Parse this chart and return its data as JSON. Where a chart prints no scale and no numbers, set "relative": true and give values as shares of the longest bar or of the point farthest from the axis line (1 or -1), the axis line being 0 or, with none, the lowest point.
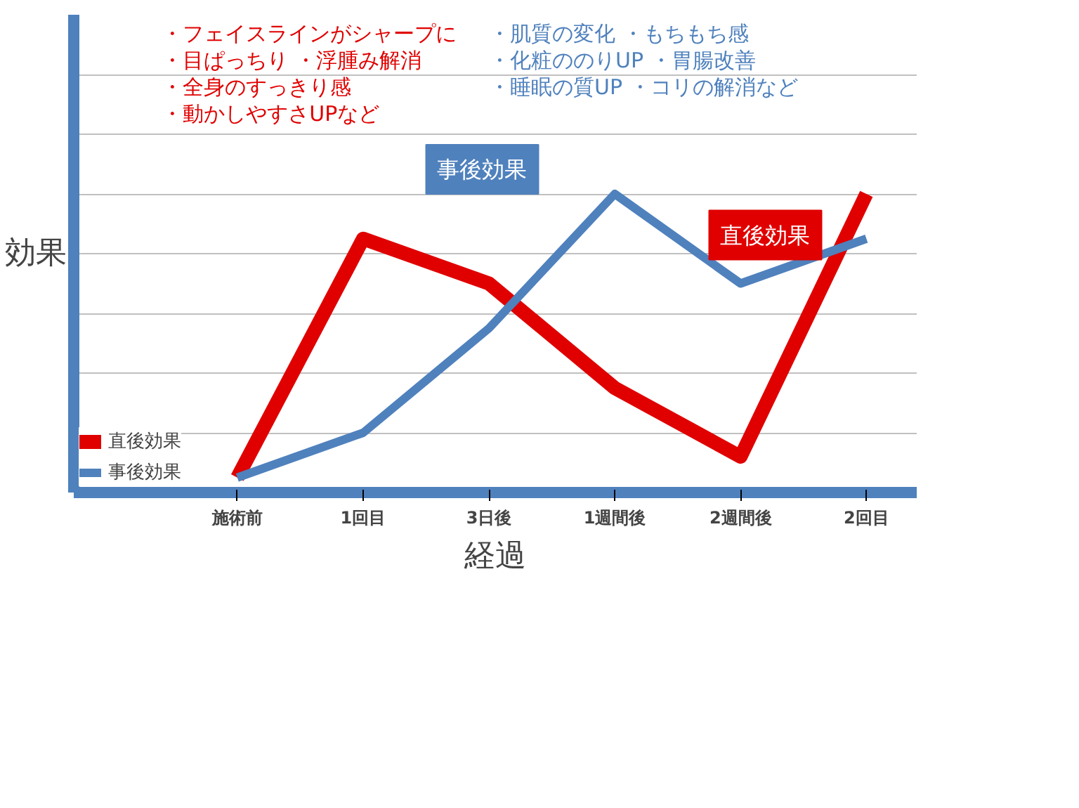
{
  "chart_data": {
    "type": "line",
    "relative": true,
    "xlabel": "経過",
    "ylabel": "効果",
    "categories": [
      "施術前",
      "1回目",
      "3日後",
      "1週間後",
      "2週間後",
      "2回目"
    ],
    "series": [
      {
        "name": "直後効果",
        "color": "#e00000",
        "values": [
          0.05,
          0.85,
          0.7,
          0.35,
          0.12,
          1.0
        ]
      },
      {
        "name": "事後効果",
        "color": "#4f81bd",
        "values": [
          0.05,
          0.2,
          0.55,
          1.0,
          0.7,
          0.85
        ]
      }
    ],
    "annotations": [
      "・フェイスラインがシャープに",
      "・目ぱっちり ・浮腫み解消",
      "・全身のすっきり感",
      "・動かしやすさUPなど",
      "・肌質の変化 ・もちもち感",
      "・化粧ののりUP ・胃腸改善",
      "・睡眠の質UP ・コリの解消など"
    ],
    "legend": "bottom left",
    "grid": "y",
    "line_style": "solid",
    "marker": "none"
  }
}
